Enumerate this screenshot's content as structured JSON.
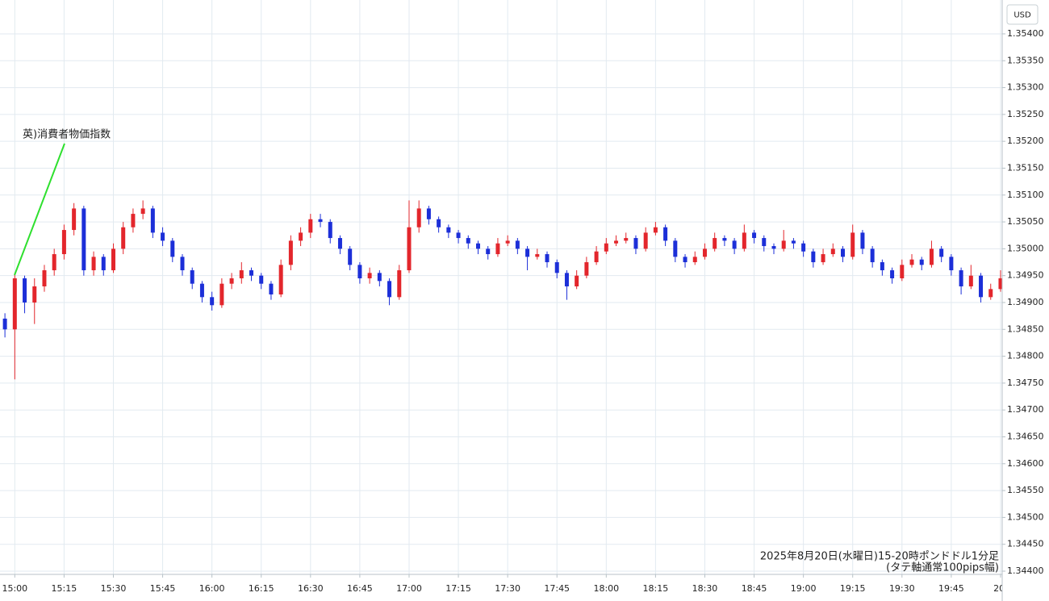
{
  "chart_data": {
    "type": "candlestick",
    "currency": "USD",
    "annotation": "英)消費者物価指数",
    "caption": [
      "2025年8月20日(水曜日)15-20時ポンドドル1分足",
      "(タテ軸通常100pips幅)"
    ],
    "up_color": "#e3262c",
    "down_color": "#1c2fd8",
    "grid": true,
    "xlim": [
      -4.5,
      300.5
    ],
    "ylim": [
      1.34394,
      1.35463
    ],
    "xticks": [
      {
        "value": 0,
        "label": "15:00"
      },
      {
        "value": 15,
        "label": "15:15"
      },
      {
        "value": 30,
        "label": "15:30"
      },
      {
        "value": 45,
        "label": "15:45"
      },
      {
        "value": 60,
        "label": "16:00"
      },
      {
        "value": 75,
        "label": "16:15"
      },
      {
        "value": 90,
        "label": "16:30"
      },
      {
        "value": 105,
        "label": "16:45"
      },
      {
        "value": 120,
        "label": "17:00"
      },
      {
        "value": 135,
        "label": "17:15"
      },
      {
        "value": 150,
        "label": "17:30"
      },
      {
        "value": 165,
        "label": "17:45"
      },
      {
        "value": 180,
        "label": "18:00"
      },
      {
        "value": 195,
        "label": "18:15"
      },
      {
        "value": 210,
        "label": "18:30"
      },
      {
        "value": 225,
        "label": "18:45"
      },
      {
        "value": 240,
        "label": "19:00"
      },
      {
        "value": 255,
        "label": "19:15"
      },
      {
        "value": 270,
        "label": "19:30"
      },
      {
        "value": 285,
        "label": "19:45"
      },
      {
        "value": 300,
        "label": "20:"
      }
    ],
    "yticks": [
      {
        "value": 1.344,
        "label": "1.34400"
      },
      {
        "value": 1.3445,
        "label": "1.34450"
      },
      {
        "value": 1.345,
        "label": "1.34500"
      },
      {
        "value": 1.3455,
        "label": "1.34550"
      },
      {
        "value": 1.346,
        "label": "1.34600"
      },
      {
        "value": 1.3465,
        "label": "1.34650"
      },
      {
        "value": 1.347,
        "label": "1.34700"
      },
      {
        "value": 1.3475,
        "label": "1.34750"
      },
      {
        "value": 1.348,
        "label": "1.34800"
      },
      {
        "value": 1.3485,
        "label": "1.34850"
      },
      {
        "value": 1.349,
        "label": "1.34900"
      },
      {
        "value": 1.3495,
        "label": "1.34950"
      },
      {
        "value": 1.35,
        "label": "1.35000"
      },
      {
        "value": 1.3505,
        "label": "1.35050"
      },
      {
        "value": 1.351,
        "label": "1.35100"
      },
      {
        "value": 1.3515,
        "label": "1.35150"
      },
      {
        "value": 1.352,
        "label": "1.35200"
      },
      {
        "value": 1.3525,
        "label": "1.35250"
      },
      {
        "value": 1.353,
        "label": "1.35300"
      },
      {
        "value": 1.3535,
        "label": "1.35350"
      },
      {
        "value": 1.354,
        "label": "1.35400"
      }
    ],
    "candles": [
      [
        -3,
        1.3487,
        1.3488,
        1.34835,
        1.3485
      ],
      [
        0,
        1.3485,
        1.34955,
        1.34757,
        1.34945
      ],
      [
        3,
        1.34945,
        1.3495,
        1.3488,
        1.349
      ],
      [
        6,
        1.349,
        1.34945,
        1.3486,
        1.3493
      ],
      [
        9,
        1.3493,
        1.3497,
        1.3492,
        1.3496
      ],
      [
        12,
        1.3496,
        1.35,
        1.3495,
        1.3499
      ],
      [
        15,
        1.3499,
        1.35045,
        1.3498,
        1.35035
      ],
      [
        18,
        1.35035,
        1.35085,
        1.35025,
        1.35075
      ],
      [
        21,
        1.35075,
        1.3508,
        1.3495,
        1.3496
      ],
      [
        24,
        1.3496,
        1.34995,
        1.3495,
        1.34985
      ],
      [
        27,
        1.34985,
        1.3499,
        1.3495,
        1.3496
      ],
      [
        30,
        1.3496,
        1.3501,
        1.34955,
        1.35
      ],
      [
        33,
        1.35,
        1.3505,
        1.3499,
        1.3504
      ],
      [
        36,
        1.3504,
        1.35075,
        1.3503,
        1.35065
      ],
      [
        39,
        1.35065,
        1.3509,
        1.35055,
        1.35075
      ],
      [
        42,
        1.35075,
        1.3508,
        1.3502,
        1.3503
      ],
      [
        45,
        1.3503,
        1.3504,
        1.35005,
        1.35015
      ],
      [
        48,
        1.35015,
        1.3502,
        1.34975,
        1.34985
      ],
      [
        51,
        1.34985,
        1.3499,
        1.3495,
        1.3496
      ],
      [
        54,
        1.3496,
        1.34965,
        1.34925,
        1.34935
      ],
      [
        57,
        1.34935,
        1.3494,
        1.349,
        1.3491
      ],
      [
        60,
        1.3491,
        1.3492,
        1.34885,
        1.34895
      ],
      [
        63,
        1.34895,
        1.34945,
        1.3489,
        1.34935
      ],
      [
        66,
        1.34935,
        1.34955,
        1.34925,
        1.34945
      ],
      [
        69,
        1.34945,
        1.34975,
        1.34935,
        1.3496
      ],
      [
        72,
        1.3496,
        1.34965,
        1.3494,
        1.3495
      ],
      [
        75,
        1.3495,
        1.34955,
        1.34925,
        1.34935
      ],
      [
        78,
        1.34935,
        1.3494,
        1.34905,
        1.34915
      ],
      [
        81,
        1.34915,
        1.3498,
        1.3491,
        1.3497
      ],
      [
        84,
        1.3497,
        1.35025,
        1.3496,
        1.35015
      ],
      [
        87,
        1.35015,
        1.3504,
        1.35005,
        1.3503
      ],
      [
        90,
        1.3503,
        1.35065,
        1.3502,
        1.35055
      ],
      [
        93,
        1.35055,
        1.35065,
        1.3504,
        1.3505
      ],
      [
        96,
        1.3505,
        1.35055,
        1.3501,
        1.3502
      ],
      [
        99,
        1.3502,
        1.35025,
        1.3499,
        1.35
      ],
      [
        102,
        1.35,
        1.35005,
        1.3496,
        1.3497
      ],
      [
        105,
        1.3497,
        1.34975,
        1.34935,
        1.34945
      ],
      [
        108,
        1.34945,
        1.34965,
        1.34935,
        1.34955
      ],
      [
        111,
        1.34955,
        1.3496,
        1.3493,
        1.3494
      ],
      [
        114,
        1.3494,
        1.34945,
        1.34895,
        1.3491
      ],
      [
        117,
        1.3491,
        1.3497,
        1.34905,
        1.3496
      ],
      [
        120,
        1.3496,
        1.3509,
        1.34955,
        1.3504
      ],
      [
        123,
        1.3504,
        1.3509,
        1.3503,
        1.35075
      ],
      [
        126,
        1.35075,
        1.3508,
        1.35045,
        1.35055
      ],
      [
        129,
        1.35055,
        1.3506,
        1.3503,
        1.3504
      ],
      [
        132,
        1.3504,
        1.35045,
        1.3502,
        1.3503
      ],
      [
        135,
        1.3503,
        1.35035,
        1.3501,
        1.3502
      ],
      [
        138,
        1.3502,
        1.35025,
        1.35,
        1.3501
      ],
      [
        141,
        1.3501,
        1.35015,
        1.3499,
        1.35
      ],
      [
        144,
        1.35,
        1.35005,
        1.3498,
        1.3499
      ],
      [
        147,
        1.3499,
        1.3502,
        1.34985,
        1.3501
      ],
      [
        150,
        1.3501,
        1.35025,
        1.35005,
        1.35015
      ],
      [
        153,
        1.35015,
        1.3502,
        1.3499,
        1.35
      ],
      [
        156,
        1.35,
        1.35005,
        1.3496,
        1.34985
      ],
      [
        159,
        1.34985,
        1.35,
        1.3498,
        1.3499
      ],
      [
        162,
        1.3499,
        1.34995,
        1.34965,
        1.34975
      ],
      [
        165,
        1.34975,
        1.3498,
        1.34945,
        1.34955
      ],
      [
        168,
        1.34955,
        1.3496,
        1.34905,
        1.3493
      ],
      [
        171,
        1.3493,
        1.3496,
        1.34925,
        1.3495
      ],
      [
        174,
        1.3495,
        1.34985,
        1.34945,
        1.34975
      ],
      [
        177,
        1.34975,
        1.35005,
        1.3497,
        1.34995
      ],
      [
        180,
        1.34995,
        1.3502,
        1.3499,
        1.3501
      ],
      [
        183,
        1.3501,
        1.35025,
        1.35005,
        1.35015
      ],
      [
        186,
        1.35015,
        1.3503,
        1.3501,
        1.3502
      ],
      [
        189,
        1.3502,
        1.35025,
        1.3499,
        1.35
      ],
      [
        192,
        1.35,
        1.3504,
        1.34995,
        1.3503
      ],
      [
        195,
        1.3503,
        1.3505,
        1.35025,
        1.3504
      ],
      [
        198,
        1.3504,
        1.35045,
        1.35005,
        1.35015
      ],
      [
        201,
        1.35015,
        1.3502,
        1.34975,
        1.34985
      ],
      [
        204,
        1.34985,
        1.3499,
        1.34965,
        1.34975
      ],
      [
        207,
        1.34975,
        1.34995,
        1.3497,
        1.34985
      ],
      [
        210,
        1.34985,
        1.3501,
        1.3498,
        1.35
      ],
      [
        213,
        1.35,
        1.3503,
        1.34995,
        1.3502
      ],
      [
        216,
        1.3502,
        1.35025,
        1.35005,
        1.35015
      ],
      [
        219,
        1.35015,
        1.3502,
        1.3499,
        1.35
      ],
      [
        222,
        1.35,
        1.35045,
        1.34995,
        1.3503
      ],
      [
        225,
        1.3503,
        1.35035,
        1.3501,
        1.3502
      ],
      [
        228,
        1.3502,
        1.35025,
        1.34995,
        1.35005
      ],
      [
        231,
        1.35005,
        1.3501,
        1.3499,
        1.35
      ],
      [
        234,
        1.35,
        1.35035,
        1.34995,
        1.35015
      ],
      [
        237,
        1.35015,
        1.3502,
        1.35,
        1.3501
      ],
      [
        240,
        1.3501,
        1.35015,
        1.34985,
        1.34995
      ],
      [
        243,
        1.34995,
        1.35,
        1.34965,
        1.34975
      ],
      [
        246,
        1.34975,
        1.35,
        1.3497,
        1.3499
      ],
      [
        249,
        1.3499,
        1.3501,
        1.34985,
        1.35
      ],
      [
        252,
        1.35,
        1.35005,
        1.34975,
        1.34985
      ],
      [
        255,
        1.34985,
        1.35045,
        1.3498,
        1.3503
      ],
      [
        258,
        1.3503,
        1.35035,
        1.3499,
        1.35
      ],
      [
        261,
        1.35,
        1.35005,
        1.34965,
        1.34975
      ],
      [
        264,
        1.34975,
        1.3498,
        1.3495,
        1.3496
      ],
      [
        267,
        1.3496,
        1.34965,
        1.34935,
        1.34945
      ],
      [
        270,
        1.34945,
        1.3498,
        1.3494,
        1.3497
      ],
      [
        273,
        1.3497,
        1.3499,
        1.34965,
        1.3498
      ],
      [
        276,
        1.3498,
        1.34985,
        1.3496,
        1.3497
      ],
      [
        279,
        1.3497,
        1.35015,
        1.34965,
        1.35
      ],
      [
        282,
        1.35,
        1.35005,
        1.34975,
        1.34985
      ],
      [
        285,
        1.34985,
        1.3499,
        1.3495,
        1.3496
      ],
      [
        288,
        1.3496,
        1.34965,
        1.34915,
        1.3493
      ],
      [
        291,
        1.3493,
        1.3497,
        1.34925,
        1.3495
      ],
      [
        294,
        1.3495,
        1.34955,
        1.349,
        1.3491
      ],
      [
        297,
        1.3491,
        1.34935,
        1.34905,
        1.34925
      ],
      [
        300,
        1.34925,
        1.3496,
        1.3492,
        1.34945
      ]
    ]
  }
}
